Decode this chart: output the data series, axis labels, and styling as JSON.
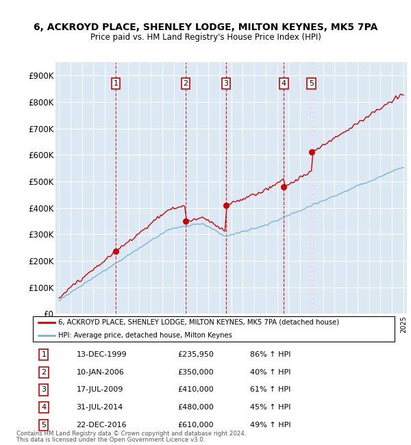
{
  "title_line1": "6, ACKROYD PLACE, SHENLEY LODGE, MILTON KEYNES, MK5 7PA",
  "title_line2": "Price paid vs. HM Land Registry's House Price Index (HPI)",
  "plot_bg_color": "#dce9f5",
  "sale_dates_num": [
    1999.95,
    2006.03,
    2009.54,
    2014.58,
    2016.98
  ],
  "sale_prices": [
    235950,
    350000,
    410000,
    480000,
    610000
  ],
  "sale_labels": [
    "1",
    "2",
    "3",
    "4",
    "5"
  ],
  "sale_label_dates": [
    "13-DEC-1999",
    "10-JAN-2006",
    "17-JUL-2009",
    "31-JUL-2014",
    "22-DEC-2016"
  ],
  "sale_label_prices": [
    "£235,950",
    "£350,000",
    "£410,000",
    "£480,000",
    "£610,000"
  ],
  "sale_label_hpi": [
    "86% ↑ HPI",
    "40% ↑ HPI",
    "61% ↑ HPI",
    "45% ↑ HPI",
    "49% ↑ HPI"
  ],
  "hpi_line_color": "#7ab3d4",
  "sale_line_color": "#cc0000",
  "dashed_line_color": "#cc0000",
  "ylim": [
    0,
    950000
  ],
  "xlim_start": 1994.7,
  "xlim_end": 2025.3,
  "ytick_labels": [
    "£0",
    "£100K",
    "£200K",
    "£300K",
    "£400K",
    "£500K",
    "£600K",
    "£700K",
    "£800K",
    "£900K"
  ],
  "ytick_values": [
    0,
    100000,
    200000,
    300000,
    400000,
    500000,
    600000,
    700000,
    800000,
    900000
  ],
  "footer_line1": "Contains HM Land Registry data © Crown copyright and database right 2024.",
  "footer_line2": "This data is licensed under the Open Government Licence v3.0.",
  "legend_line1": "6, ACKROYD PLACE, SHENLEY LODGE, MILTON KEYNES, MK5 7PA (detached house)",
  "legend_line2": "HPI: Average price, detached house, Milton Keynes"
}
